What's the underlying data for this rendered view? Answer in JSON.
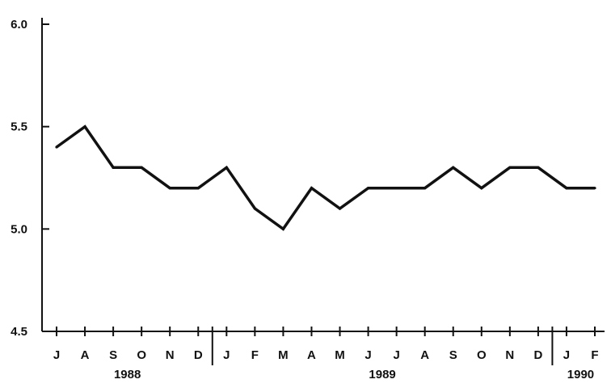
{
  "chart_data": {
    "type": "line",
    "title": "",
    "xlabel": "",
    "ylabel": "",
    "ylim": [
      4.5,
      6.0
    ],
    "yticks": [
      "4.5",
      "5.0",
      "5.5",
      "6.0"
    ],
    "months": [
      "J",
      "A",
      "S",
      "O",
      "N",
      "D",
      "J",
      "F",
      "M",
      "A",
      "M",
      "J",
      "J",
      "A",
      "S",
      "O",
      "N",
      "D",
      "J",
      "F"
    ],
    "years": [
      {
        "label": "1988",
        "start": 0,
        "end": 5
      },
      {
        "label": "1989",
        "start": 6,
        "end": 17
      },
      {
        "label": "1990",
        "start": 18,
        "end": 19
      }
    ],
    "series": [
      {
        "values": [
          5.4,
          5.5,
          5.3,
          5.3,
          5.2,
          5.2,
          5.3,
          5.1,
          5.0,
          5.2,
          5.1,
          5.2,
          5.2,
          5.2,
          5.3,
          5.2,
          5.3,
          5.3,
          5.2,
          5.2
        ]
      }
    ],
    "grid": false,
    "line_color": "#111111"
  }
}
